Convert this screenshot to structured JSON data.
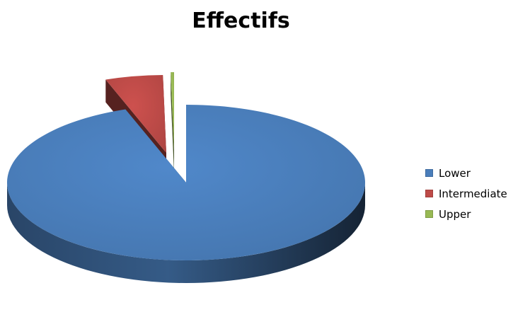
{
  "chart_data": {
    "type": "pie",
    "title": "Effectifs",
    "categories": [
      "Lower",
      "Intermediate",
      "Upper"
    ],
    "values": [
      94.5,
      5.2,
      0.3
    ],
    "colors": [
      "#4a7ebb",
      "#be4b48",
      "#98b954"
    ],
    "legend_position": "right",
    "style": "3d-exploded"
  }
}
